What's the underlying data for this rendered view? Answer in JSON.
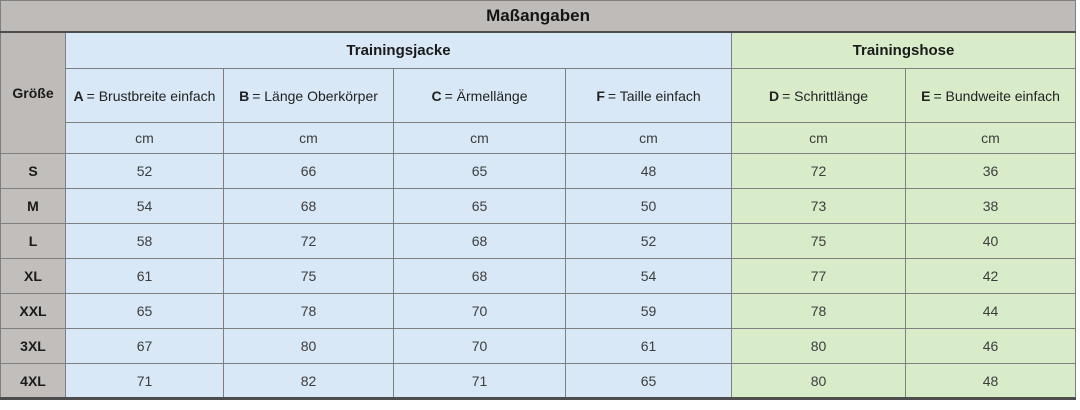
{
  "title": "Maßangaben",
  "corner_label": "Größe",
  "groups": [
    {
      "label": "Trainingsjacke"
    },
    {
      "label": "Trainingshose"
    }
  ],
  "columns": [
    {
      "letter": "A",
      "rest": "= Brustbreite einfach"
    },
    {
      "letter": "B",
      "rest": "= Länge Oberkörper"
    },
    {
      "letter": "C",
      "rest": "= Ärmellänge"
    },
    {
      "letter": "F",
      "rest": "= Taille einfach"
    },
    {
      "letter": "D",
      "rest": "= Schrittlänge"
    },
    {
      "letter": "E",
      "rest": "= Bundweite einfach"
    }
  ],
  "unit": "cm",
  "rows": [
    {
      "size": "S",
      "values": [
        "52",
        "66",
        "65",
        "48",
        "72",
        "36"
      ]
    },
    {
      "size": "M",
      "values": [
        "54",
        "68",
        "65",
        "50",
        "73",
        "38"
      ]
    },
    {
      "size": "L",
      "values": [
        "58",
        "72",
        "68",
        "52",
        "75",
        "40"
      ]
    },
    {
      "size": "XL",
      "values": [
        "61",
        "75",
        "68",
        "54",
        "77",
        "42"
      ]
    },
    {
      "size": "XXL",
      "values": [
        "65",
        "78",
        "70",
        "59",
        "78",
        "44"
      ]
    },
    {
      "size": "3XL",
      "values": [
        "67",
        "80",
        "70",
        "61",
        "80",
        "46"
      ]
    },
    {
      "size": "4XL",
      "values": [
        "71",
        "82",
        "71",
        "65",
        "80",
        "48"
      ]
    }
  ],
  "colors": {
    "header_gray": "#bebbb8",
    "size_cell_gray": "#c1bebb",
    "jacket_blue": "#d8e8f6",
    "pants_green": "#d9ecca",
    "border": "#7f7f7f",
    "border_dark": "#4d4d4d",
    "title_text": "#141414",
    "value_text": "#3d3d3d"
  },
  "chart_data": {
    "type": "table",
    "title": "Maßangaben",
    "row_label": "Größe",
    "unit": "cm",
    "column_groups": [
      {
        "label": "Trainingsjacke",
        "columns": [
          "A = Brustbreite einfach",
          "B = Länge Oberkörper",
          "C = Ärmellänge",
          "F = Taille einfach"
        ]
      },
      {
        "label": "Trainingshose",
        "columns": [
          "D = Schrittlänge",
          "E = Bundweite einfach"
        ]
      }
    ],
    "categories": [
      "S",
      "M",
      "L",
      "XL",
      "XXL",
      "3XL",
      "4XL"
    ],
    "series": [
      {
        "name": "A = Brustbreite einfach",
        "values": [
          52,
          54,
          58,
          61,
          65,
          67,
          71
        ]
      },
      {
        "name": "B = Länge Oberkörper",
        "values": [
          66,
          68,
          72,
          75,
          78,
          80,
          82
        ]
      },
      {
        "name": "C = Ärmellänge",
        "values": [
          65,
          65,
          68,
          68,
          70,
          70,
          71
        ]
      },
      {
        "name": "F = Taille einfach",
        "values": [
          48,
          50,
          52,
          54,
          59,
          61,
          65
        ]
      },
      {
        "name": "D = Schrittlänge",
        "values": [
          72,
          73,
          75,
          77,
          78,
          80,
          80
        ]
      },
      {
        "name": "E = Bundweite einfach",
        "values": [
          36,
          38,
          40,
          42,
          44,
          46,
          48
        ]
      }
    ]
  }
}
